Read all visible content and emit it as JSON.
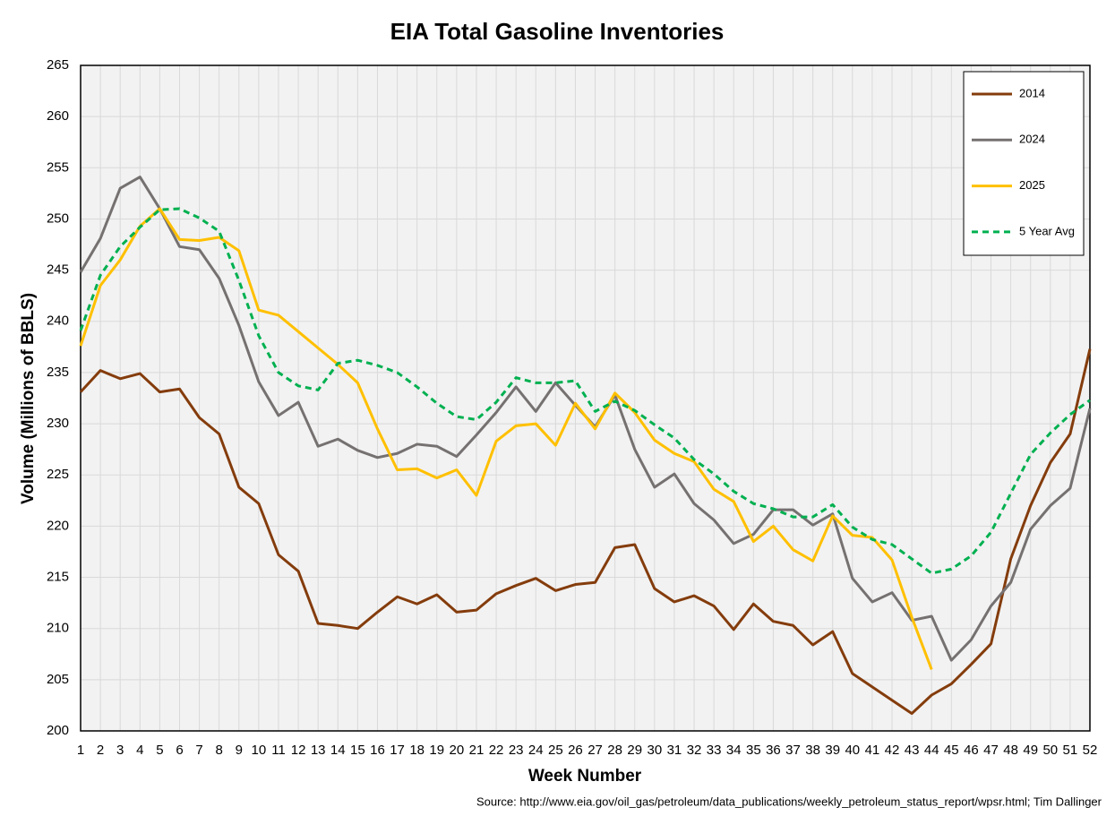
{
  "chart_data": {
    "type": "line",
    "title": "EIA Total Gasoline Inventories",
    "x_label": "Week Number",
    "y_label": "Volume (Millions of BBLS)",
    "source": "Source: http://www.eia.gov/oil_gas/petroleum/data_publications/weekly_petroleum_status_report/wpsr.html; Tim Dallinger",
    "x": [
      1,
      2,
      3,
      4,
      5,
      6,
      7,
      8,
      9,
      10,
      11,
      12,
      13,
      14,
      15,
      16,
      17,
      18,
      19,
      20,
      21,
      22,
      23,
      24,
      25,
      26,
      27,
      28,
      29,
      30,
      31,
      32,
      33,
      34,
      35,
      36,
      37,
      38,
      39,
      40,
      41,
      42,
      43,
      44,
      45,
      46,
      47,
      48,
      49,
      50,
      51,
      52
    ],
    "xlim": [
      1,
      52
    ],
    "xticks": [
      1,
      2,
      3,
      4,
      5,
      6,
      7,
      8,
      9,
      10,
      11,
      12,
      13,
      14,
      15,
      16,
      17,
      18,
      19,
      20,
      21,
      22,
      23,
      24,
      25,
      26,
      27,
      28,
      29,
      30,
      31,
      32,
      33,
      34,
      35,
      36,
      37,
      38,
      39,
      40,
      41,
      42,
      43,
      44,
      45,
      46,
      47,
      48,
      49,
      50,
      51,
      52
    ],
    "ylim": [
      200,
      265
    ],
    "yticks": [
      200,
      205,
      210,
      215,
      220,
      225,
      230,
      235,
      240,
      245,
      250,
      255,
      260,
      265
    ],
    "grid": true,
    "legend": "upper right",
    "series": [
      {
        "name": "2014",
        "color": "#843c0c",
        "dashed": false,
        "values": [
          233.1,
          235.2,
          234.4,
          234.9,
          233.1,
          233.4,
          230.6,
          229.0,
          223.8,
          222.2,
          217.2,
          215.6,
          210.5,
          210.3,
          210.0,
          211.6,
          213.1,
          212.4,
          213.3,
          211.6,
          211.8,
          213.4,
          214.2,
          214.9,
          213.7,
          214.3,
          214.5,
          217.9,
          218.2,
          213.9,
          212.6,
          213.2,
          212.2,
          209.9,
          212.4,
          210.7,
          210.3,
          208.4,
          209.7,
          205.6,
          204.3,
          203.0,
          201.7,
          203.5,
          204.6,
          206.5,
          208.5,
          216.8,
          222.0,
          226.2,
          229.0,
          237.3
        ]
      },
      {
        "name": "2024",
        "color": "#767171",
        "dashed": false,
        "values": [
          244.8,
          248.1,
          253.0,
          254.1,
          251.0,
          247.3,
          247.0,
          244.2,
          239.6,
          234.1,
          230.8,
          232.1,
          227.8,
          228.5,
          227.4,
          226.7,
          227.1,
          228.0,
          227.8,
          226.8,
          228.9,
          231.1,
          233.6,
          231.2,
          234.0,
          231.8,
          229.7,
          232.8,
          227.5,
          223.8,
          225.1,
          222.2,
          220.6,
          218.3,
          219.2,
          221.6,
          221.6,
          220.1,
          221.2,
          214.9,
          212.6,
          213.5,
          210.8,
          211.2,
          206.9,
          208.9,
          212.2,
          214.5,
          219.7,
          222.0,
          223.7,
          231.5
        ]
      },
      {
        "name": "2025",
        "color": "#ffc000",
        "dashed": false,
        "values": [
          237.6,
          243.5,
          246.0,
          249.3,
          251.0,
          248.0,
          247.9,
          248.2,
          246.9,
          241.1,
          240.6,
          239.0,
          237.4,
          235.8,
          234.0,
          229.5,
          225.5,
          225.6,
          224.7,
          225.5,
          223.0,
          228.3,
          229.8,
          230.0,
          227.9,
          232.0,
          229.5,
          233.0,
          231.1,
          228.4,
          227.1,
          226.3,
          223.6,
          222.4,
          218.5,
          220.0,
          217.7,
          216.6,
          221.0,
          219.1,
          218.9,
          216.7,
          211.1,
          206.0,
          null,
          null,
          null,
          null,
          null,
          null,
          null,
          null
        ]
      },
      {
        "name": "5 Year Avg",
        "color": "#00b050",
        "dashed": true,
        "values": [
          239.1,
          244.5,
          247.3,
          249.2,
          250.9,
          251.0,
          250.1,
          248.8,
          244.0,
          238.6,
          235.0,
          233.7,
          233.3,
          235.9,
          236.2,
          235.7,
          235.0,
          233.6,
          232.0,
          230.7,
          230.4,
          232.1,
          234.5,
          234.0,
          234.0,
          234.2,
          231.2,
          232.2,
          231.3,
          229.9,
          228.6,
          226.5,
          225.1,
          223.4,
          222.2,
          221.7,
          220.9,
          220.9,
          222.1,
          219.9,
          218.7,
          218.2,
          216.8,
          215.4,
          215.8,
          217.1,
          219.4,
          223.2,
          227.0,
          229.1,
          230.9,
          232.3
        ]
      }
    ]
  }
}
